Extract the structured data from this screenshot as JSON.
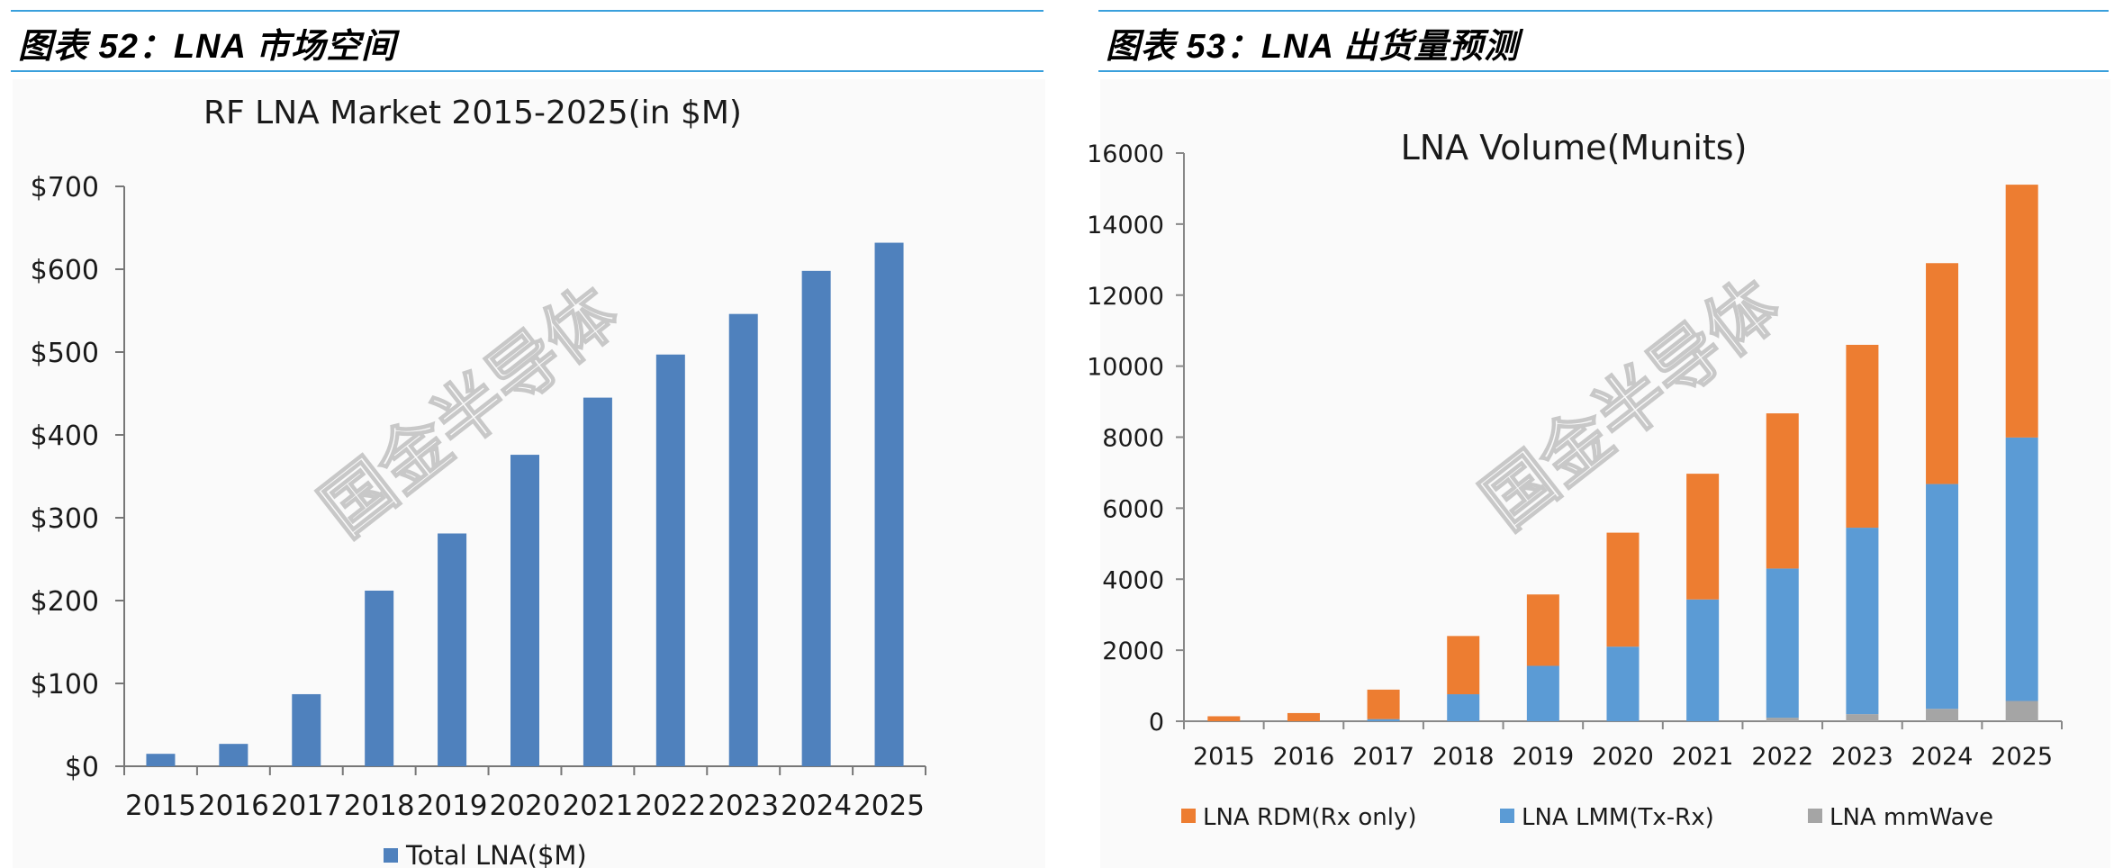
{
  "figures": {
    "left": {
      "caption": "图表 52：LNA 市场空间"
    },
    "right": {
      "caption": "图表 53：LNA 出货量预测"
    }
  },
  "watermark": "国金半导体",
  "chart_data": [
    {
      "type": "bar",
      "title": "RF LNA Market 2015-2025(in  $M)",
      "categories": [
        "2015",
        "2016",
        "2017",
        "2018",
        "2019",
        "2020",
        "2021",
        "2022",
        "2023",
        "2024",
        "2025"
      ],
      "series": [
        {
          "name": "Total LNA($M)",
          "values": [
            15,
            27,
            87,
            212,
            281,
            376,
            445,
            497,
            546,
            598,
            632
          ]
        }
      ],
      "yticks": [
        "$0",
        "$100",
        "$200",
        "$300",
        "$400",
        "$500",
        "$600",
        "$700"
      ],
      "ylim": [
        0,
        700
      ],
      "legend_position": "bottom",
      "grid": false,
      "colors": {
        "bar": "#4f81bd"
      }
    },
    {
      "type": "bar",
      "stacked": true,
      "title": "LNA Volume(Munits)",
      "categories": [
        "2015",
        "2016",
        "2017",
        "2018",
        "2019",
        "2020",
        "2021",
        "2022",
        "2023",
        "2024",
        "2025"
      ],
      "series": [
        {
          "name": "LNA mmWave",
          "values": [
            0,
            0,
            0,
            0,
            0,
            0,
            0,
            100,
            200,
            350,
            570
          ]
        },
        {
          "name": "LNA LMM(Tx-Rx)",
          "values": [
            0,
            0,
            60,
            760,
            1560,
            2100,
            3430,
            4200,
            5250,
            6330,
            7420
          ]
        },
        {
          "name": "LNA RDM(Rx only)",
          "values": [
            140,
            230,
            830,
            1640,
            2010,
            3210,
            3540,
            4370,
            5150,
            6220,
            7120
          ]
        }
      ],
      "legend_order": [
        "LNA RDM(Rx only)",
        "LNA LMM(Tx-Rx)",
        "LNA mmWave"
      ],
      "yticks": [
        "0",
        "2000",
        "4000",
        "6000",
        "8000",
        "10000",
        "12000",
        "14000",
        "16000"
      ],
      "ylim": [
        0,
        16000
      ],
      "legend_position": "bottom",
      "grid": false,
      "colors": {
        "LNA RDM(Rx only)": "#ed7d31",
        "LNA LMM(Tx-Rx)": "#5b9bd5",
        "LNA mmWave": "#a5a5a5"
      }
    }
  ]
}
